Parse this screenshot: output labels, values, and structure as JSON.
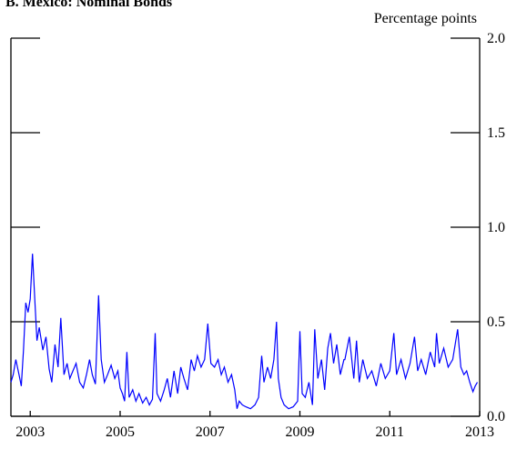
{
  "chart_data": {
    "type": "line",
    "title": "B. Mexico: Nominal Bonds",
    "y_label": "Percentage points",
    "color": "#0000ff",
    "x": [
      2002.57,
      2002.62,
      2002.68,
      2002.75,
      2002.8,
      2002.85,
      2002.9,
      2002.95,
      2003.0,
      2003.05,
      2003.1,
      2003.15,
      2003.2,
      2003.28,
      2003.35,
      2003.42,
      2003.48,
      2003.55,
      2003.62,
      2003.68,
      2003.75,
      2003.82,
      2003.88,
      2003.95,
      2004.02,
      2004.1,
      2004.18,
      2004.25,
      2004.32,
      2004.38,
      2004.45,
      2004.52,
      2004.58,
      2004.65,
      2004.72,
      2004.8,
      2004.88,
      2004.95,
      2005.0,
      2005.05,
      2005.1,
      2005.15,
      2005.2,
      2005.28,
      2005.35,
      2005.42,
      2005.5,
      2005.58,
      2005.65,
      2005.72,
      2005.78,
      2005.82,
      2005.9,
      2005.98,
      2006.05,
      2006.12,
      2006.2,
      2006.28,
      2006.35,
      2006.42,
      2006.5,
      2006.58,
      2006.65,
      2006.72,
      2006.8,
      2006.88,
      2006.95,
      2007.02,
      2007.1,
      2007.18,
      2007.25,
      2007.32,
      2007.4,
      2007.48,
      2007.55,
      2007.6,
      2007.65,
      2007.72,
      2007.8,
      2007.9,
      2008.0,
      2008.08,
      2008.15,
      2008.2,
      2008.28,
      2008.35,
      2008.42,
      2008.48,
      2008.52,
      2008.58,
      2008.65,
      2008.75,
      2008.85,
      2008.95,
      2009.0,
      2009.05,
      2009.12,
      2009.2,
      2009.28,
      2009.33,
      2009.4,
      2009.48,
      2009.55,
      2009.62,
      2009.68,
      2009.75,
      2009.82,
      2009.9,
      2009.98,
      2010.0,
      2010.1,
      2010.2,
      2010.26,
      2010.32,
      2010.4,
      2010.5,
      2010.6,
      2010.7,
      2010.8,
      2010.9,
      2011.0,
      2011.09,
      2011.15,
      2011.25,
      2011.35,
      2011.45,
      2011.55,
      2011.62,
      2011.7,
      2011.8,
      2011.9,
      2012.0,
      2012.04,
      2012.1,
      2012.2,
      2012.3,
      2012.4,
      2012.51,
      2012.58,
      2012.65,
      2012.71,
      2012.78,
      2012.85,
      2012.9,
      2012.95
    ],
    "values": [
      0.18,
      0.22,
      0.3,
      0.22,
      0.16,
      0.35,
      0.6,
      0.55,
      0.62,
      0.86,
      0.62,
      0.4,
      0.47,
      0.35,
      0.42,
      0.25,
      0.18,
      0.38,
      0.26,
      0.52,
      0.22,
      0.28,
      0.2,
      0.24,
      0.28,
      0.18,
      0.15,
      0.22,
      0.3,
      0.22,
      0.17,
      0.64,
      0.3,
      0.18,
      0.22,
      0.27,
      0.2,
      0.24,
      0.15,
      0.12,
      0.08,
      0.34,
      0.1,
      0.14,
      0.08,
      0.12,
      0.07,
      0.1,
      0.06,
      0.09,
      0.44,
      0.12,
      0.08,
      0.14,
      0.2,
      0.1,
      0.24,
      0.12,
      0.26,
      0.2,
      0.14,
      0.3,
      0.24,
      0.32,
      0.26,
      0.3,
      0.49,
      0.28,
      0.26,
      0.3,
      0.22,
      0.26,
      0.18,
      0.22,
      0.14,
      0.04,
      0.08,
      0.06,
      0.05,
      0.04,
      0.06,
      0.1,
      0.32,
      0.18,
      0.26,
      0.2,
      0.3,
      0.5,
      0.2,
      0.1,
      0.06,
      0.04,
      0.05,
      0.08,
      0.45,
      0.12,
      0.1,
      0.18,
      0.06,
      0.46,
      0.2,
      0.3,
      0.14,
      0.36,
      0.44,
      0.28,
      0.38,
      0.22,
      0.3,
      0.3,
      0.42,
      0.2,
      0.4,
      0.18,
      0.3,
      0.2,
      0.24,
      0.16,
      0.28,
      0.2,
      0.24,
      0.44,
      0.22,
      0.3,
      0.2,
      0.28,
      0.42,
      0.24,
      0.3,
      0.22,
      0.34,
      0.26,
      0.44,
      0.28,
      0.36,
      0.26,
      0.3,
      0.46,
      0.26,
      0.22,
      0.24,
      0.18,
      0.13,
      0.16,
      0.18
    ],
    "xlim": [
      2002.57,
      2013.0
    ],
    "xticks": [
      2003,
      2005,
      2007,
      2009,
      2011,
      2013
    ],
    "ylim": [
      0,
      2
    ],
    "yticks": [
      {
        "value": 0,
        "label": "0.0"
      },
      0.5,
      {
        "value": 1,
        "label": "1.0"
      },
      1.5,
      {
        "value": 2,
        "label": "2.0"
      }
    ]
  }
}
